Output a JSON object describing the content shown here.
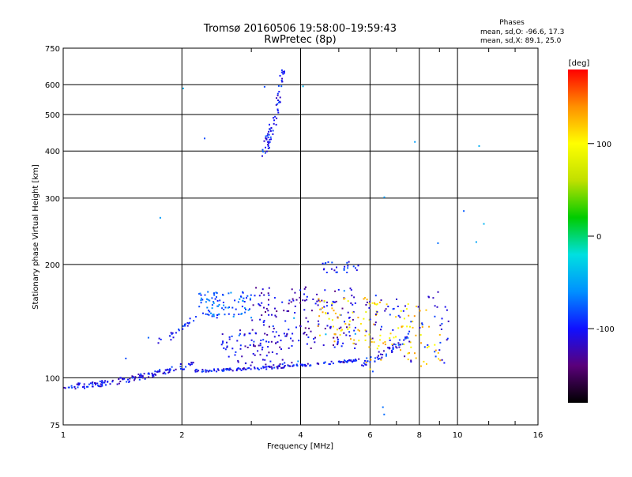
{
  "chart_data": {
    "type": "scatter",
    "title": "Tromsø 20160506 19:58:00–19:59:43",
    "subtitle": "RwPretec (8p)",
    "xlabel": "Frequency [MHz]",
    "ylabel": "Stationary phase Virtual Height [km]",
    "x_scale": "log",
    "y_scale": "log",
    "xlim": [
      1,
      16
    ],
    "ylim": [
      75,
      750
    ],
    "x_ticks": [
      1,
      2,
      4,
      6,
      8,
      10,
      16
    ],
    "x_tick_labels": [
      "1",
      "2",
      "4",
      "6",
      "8",
      "10",
      "16"
    ],
    "y_ticks": [
      75,
      100,
      200,
      300,
      400,
      500,
      600,
      750
    ],
    "y_tick_labels": [
      "75",
      "100",
      "200",
      "300",
      "400",
      "500",
      "600",
      "750"
    ],
    "grid": true,
    "stats": {
      "heading": "Phases",
      "line1": "mean, sd,O: -96.6, 17.3",
      "line2": "mean, sd,X:  89.1, 25.0"
    },
    "colorbar": {
      "label": "[deg]",
      "range": [
        -180,
        180
      ],
      "ticks": [
        100,
        0,
        -100
      ],
      "tick_labels": [
        "100",
        "0",
        "-100"
      ],
      "stops": [
        "#000000",
        "#5a007a",
        "#1010ff",
        "#0090ff",
        "#00e0e0",
        "#00cc00",
        "#c0e000",
        "#ffff00",
        "#ff9000",
        "#ff0000"
      ]
    },
    "clusters": [
      {
        "x": [
          1.0,
          2.15
        ],
        "y": [
          95,
          110
        ],
        "phase": -105,
        "n": 140,
        "shape": "curve"
      },
      {
        "x": [
          2.15,
          5.6
        ],
        "y": [
          105,
          112
        ],
        "phase": -100,
        "n": 150,
        "shape": "curve"
      },
      {
        "x": [
          5.6,
          7.5
        ],
        "y": [
          110,
          130
        ],
        "phase": -95,
        "n": 50,
        "shape": "curve"
      },
      {
        "x": [
          1.7,
          2.15
        ],
        "y": [
          125,
          145
        ],
        "phase": -100,
        "n": 25,
        "shape": "curve"
      },
      {
        "x": [
          2.2,
          3.0
        ],
        "y": [
          145,
          170
        ],
        "phase": -75,
        "n": 90,
        "shape": "blob"
      },
      {
        "x": [
          2.5,
          3.8
        ],
        "y": [
          108,
          135
        ],
        "phase": -110,
        "n": 80,
        "shape": "blob"
      },
      {
        "x": [
          3.0,
          5.5
        ],
        "y": [
          120,
          175
        ],
        "phase": -115,
        "n": 170,
        "shape": "blob"
      },
      {
        "x": [
          4.5,
          5.7
        ],
        "y": [
          190,
          205
        ],
        "phase": -100,
        "n": 25,
        "shape": "blob"
      },
      {
        "x": [
          4.4,
          6.3
        ],
        "y": [
          120,
          165
        ],
        "phase": 110,
        "n": 60,
        "shape": "blob"
      },
      {
        "x": [
          5.8,
          9.0
        ],
        "y": [
          105,
          160
        ],
        "phase": 115,
        "n": 70,
        "shape": "blob"
      },
      {
        "x": [
          5.8,
          9.5
        ],
        "y": [
          110,
          170
        ],
        "phase": -105,
        "n": 70,
        "shape": "blob"
      },
      {
        "x": [
          3.2,
          3.6
        ],
        "y": [
          405,
          650
        ],
        "phase": -100,
        "n": 70,
        "shape": "curve"
      },
      {
        "x": [
          1.2,
          12.0
        ],
        "y": [
          80,
          600
        ],
        "phase": -60,
        "n": 25,
        "shape": "sparse"
      }
    ]
  }
}
